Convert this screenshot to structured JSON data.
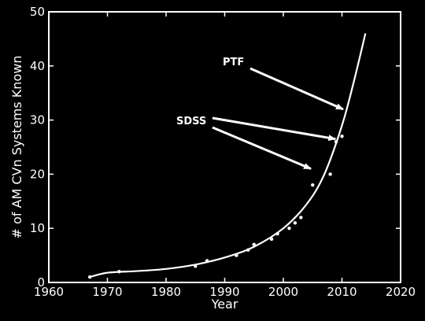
{
  "chart_data": {
    "type": "scatter",
    "title": "",
    "xlabel": "Year",
    "ylabel": "# of AM CVn Systems Known",
    "xlim": [
      1960,
      2020
    ],
    "ylim": [
      0,
      50
    ],
    "xticks": [
      1960,
      1970,
      1980,
      1990,
      2000,
      2010,
      2020
    ],
    "yticks": [
      0,
      10,
      20,
      30,
      40,
      50
    ],
    "grid": false,
    "legend": "none",
    "colors": {
      "background": "#000000",
      "foreground": "#ffffff"
    },
    "points": [
      {
        "x": 1967,
        "y": 1
      },
      {
        "x": 1972,
        "y": 2
      },
      {
        "x": 1985,
        "y": 3
      },
      {
        "x": 1987,
        "y": 4
      },
      {
        "x": 1992,
        "y": 5
      },
      {
        "x": 1994,
        "y": 6
      },
      {
        "x": 1995,
        "y": 7
      },
      {
        "x": 1998,
        "y": 8
      },
      {
        "x": 1999,
        "y": 9
      },
      {
        "x": 2001,
        "y": 10
      },
      {
        "x": 2002,
        "y": 11
      },
      {
        "x": 2003,
        "y": 12
      },
      {
        "x": 2005,
        "y": 18
      },
      {
        "x": 2008,
        "y": 20
      },
      {
        "x": 2009,
        "y": 26
      },
      {
        "x": 2010,
        "y": 27
      }
    ],
    "fit_curve": [
      {
        "x": 1967,
        "y": 1.0
      },
      {
        "x": 1970,
        "y": 1.8
      },
      {
        "x": 1975,
        "y": 2.1
      },
      {
        "x": 1980,
        "y": 2.5
      },
      {
        "x": 1985,
        "y": 3.3
      },
      {
        "x": 1990,
        "y": 4.6
      },
      {
        "x": 1995,
        "y": 6.6
      },
      {
        "x": 2000,
        "y": 10.0
      },
      {
        "x": 2004,
        "y": 14.5
      },
      {
        "x": 2007,
        "y": 20.0
      },
      {
        "x": 2010,
        "y": 29.0
      },
      {
        "x": 2012,
        "y": 37.0
      },
      {
        "x": 2014,
        "y": 46.0
      }
    ],
    "annotations": [
      {
        "text": "PTF",
        "target": {
          "x": 2010.2,
          "y": 32.0
        }
      },
      {
        "text": "SDSS",
        "target": {
          "x": 2008.9,
          "y": 26.5
        }
      },
      {
        "text": "SDSS",
        "target": {
          "x": 2004.7,
          "y": 21.0
        }
      }
    ]
  }
}
